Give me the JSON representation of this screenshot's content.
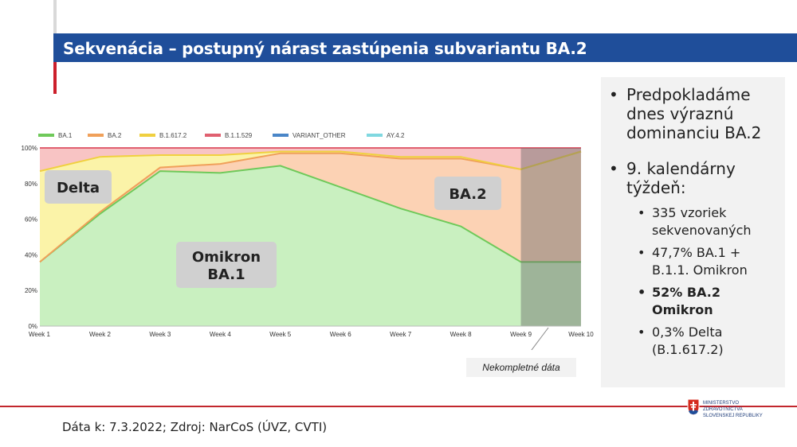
{
  "slide": {
    "title": "Sekvenácia – postupný nárast zastúpenia subvariantu BA.2",
    "source": "Dáta k: 7.3.2022; Zdroj: NarCoS (ÚVZ, CVTI)",
    "incomplete_note": "Nekompletné dáta"
  },
  "bullets": {
    "b1": "Predpokladáme dnes výraznú dominanciu BA.2",
    "b2": "9. kalendárny týždeň:",
    "b2_items": [
      "335 vzoriek sekvenovaných",
      "47,7% BA.1 + B.1.1. Omikron",
      "52% BA.2 Omikron",
      "0,3% Delta (B.1.617.2)"
    ]
  },
  "ministry": {
    "line1": "MINISTERSTVO",
    "line2": "ZDRAVOTNÍCTVA",
    "line3": "SLOVENSKEJ REPUBLIKY"
  },
  "chart_data": {
    "type": "area",
    "stacked": true,
    "x": [
      "Week 1",
      "Week 2",
      "Week 3",
      "Week 4",
      "Week 5",
      "Week 6",
      "Week 7",
      "Week 8",
      "Week 9",
      "Week 10"
    ],
    "ylim": [
      0,
      100
    ],
    "yticks": [
      "0%",
      "20%",
      "40%",
      "60%",
      "80%",
      "100%"
    ],
    "legend_position": "top",
    "series": [
      {
        "name": "BA.1",
        "color": "#6fc95a",
        "fill": "#c9f0c0",
        "values": [
          36,
          63,
          87,
          86,
          90,
          78,
          66,
          56,
          36,
          36
        ]
      },
      {
        "name": "BA.2",
        "color": "#f0a05a",
        "fill": "#fcd2b4",
        "values": [
          0,
          1,
          2,
          5,
          7,
          19,
          28,
          38,
          52,
          62
        ]
      },
      {
        "name": "B.1.617.2",
        "color": "#f0d040",
        "fill": "#fbf3a8",
        "values": [
          51,
          31,
          7,
          5,
          1,
          1,
          1,
          1,
          0,
          0
        ]
      },
      {
        "name": "B.1.1.529",
        "color": "#e06070",
        "fill": "#f8c4c4",
        "values": [
          13,
          5,
          4,
          4,
          2,
          2,
          5,
          5,
          12,
          2
        ]
      },
      {
        "name": "VARIANT_OTHER",
        "color": "#4a86c8",
        "fill": "#c8d8ee",
        "values": [
          0,
          0,
          0,
          0,
          0,
          0,
          0,
          0,
          0,
          0
        ]
      },
      {
        "name": "AY.4.2",
        "color": "#80d8e0",
        "fill": "#d0f0f4",
        "values": [
          0,
          0,
          0,
          0,
          0,
          0,
          0,
          0,
          0,
          0
        ]
      }
    ],
    "annotations": [
      "Delta",
      "Omikron BA.1",
      "BA.2"
    ],
    "shaded_region": {
      "from": "Week 9",
      "to": "Week 10"
    },
    "colors": {
      "shade": "#6b6b6b",
      "label_box": "#d0d0d0"
    }
  }
}
